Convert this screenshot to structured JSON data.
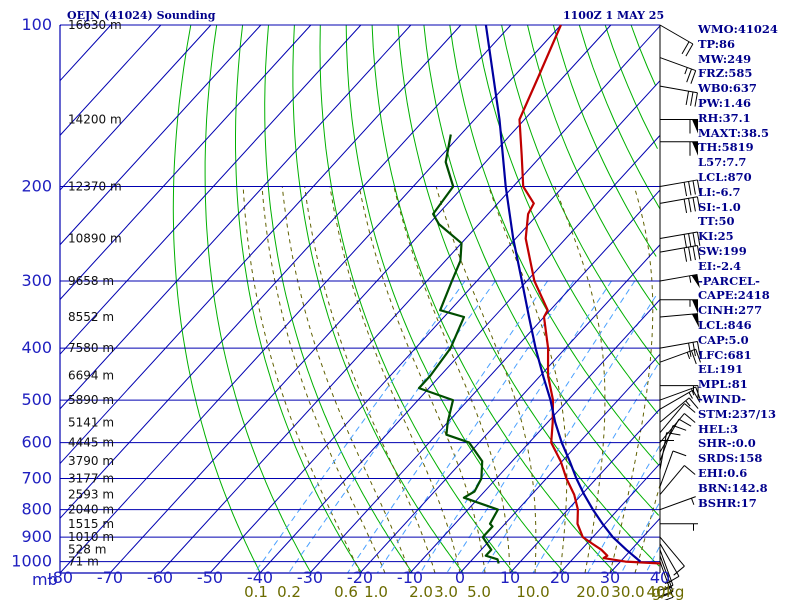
{
  "header": {
    "station": "OEJN (41024) Sounding",
    "time": "1100Z  1 MAY 25"
  },
  "colors": {
    "temperature": "#c00000",
    "dewpoint": "#004d00",
    "parcel": "#0000a0",
    "isobar_isotherm": "#0000b0",
    "dry_adiabat": "#00b000",
    "moist_adiabat": "#606000",
    "mixing_ratio": "#4aa0ff",
    "wind_barb": "#000000",
    "axis_label": "#2020c0",
    "index_text": "#00008b"
  },
  "chart_data": {
    "type": "skew-t log-p",
    "title": "OEJN (41024) Sounding",
    "valid_time": "1100Z  1 MAY 25",
    "pressure_levels_mb": [
      100,
      200,
      300,
      400,
      500,
      600,
      700,
      800,
      900,
      1000
    ],
    "pressure_tick_labels": [
      "100",
      "200",
      "300",
      "400",
      "500",
      "600",
      "700",
      "800",
      "900",
      "1000"
    ],
    "temperature_ticks_c": [
      -80,
      -70,
      -60,
      -50,
      -40,
      -30,
      -20,
      -10,
      0,
      10,
      20,
      30,
      40
    ],
    "temperature_tick_labels": [
      "-80",
      "-70",
      "-60",
      "-50",
      "-40",
      "-30",
      "-20",
      "-10",
      "0",
      "10",
      "20",
      "30",
      "40"
    ],
    "xlabel": "",
    "ylabel": "mb",
    "ylim_mb": [
      100,
      1050
    ],
    "xlim_c_at_1050mb": [
      -80,
      40
    ],
    "mixing_ratio_labels": [
      "0.1",
      "0.2",
      "0.6",
      "1.0",
      "2.0",
      "3.0",
      "5.0",
      "10.0",
      "20.0",
      "30.0",
      "40",
      "g/kg"
    ],
    "height_labels": [
      {
        "p": 100,
        "label": "16630 m"
      },
      {
        "p": 150,
        "label": "14200 m"
      },
      {
        "p": 200,
        "label": "12370 m"
      },
      {
        "p": 250,
        "label": "10890 m"
      },
      {
        "p": 300,
        "label": "9658 m"
      },
      {
        "p": 350,
        "label": "8552 m"
      },
      {
        "p": 400,
        "label": "7580 m"
      },
      {
        "p": 450,
        "label": "6694 m"
      },
      {
        "p": 500,
        "label": "5890 m"
      },
      {
        "p": 550,
        "label": "5141 m"
      },
      {
        "p": 600,
        "label": "4445 m"
      },
      {
        "p": 650,
        "label": "3790 m"
      },
      {
        "p": 700,
        "label": "3177 m"
      },
      {
        "p": 750,
        "label": "2593 m"
      },
      {
        "p": 800,
        "label": "2040 m"
      },
      {
        "p": 850,
        "label": "1515 m"
      },
      {
        "p": 900,
        "label": "1010 m"
      },
      {
        "p": 950,
        "label": "528 m"
      },
      {
        "p": 1000,
        "label": "71 m"
      }
    ],
    "series": [
      {
        "key": "temperature",
        "points": [
          {
            "p": 1008,
            "t": 38.5
          },
          {
            "p": 1000,
            "t": 31
          },
          {
            "p": 985,
            "t": 26
          },
          {
            "p": 975,
            "t": 26.3
          },
          {
            "p": 950,
            "t": 24
          },
          {
            "p": 925,
            "t": 21
          },
          {
            "p": 900,
            "t": 18
          },
          {
            "p": 850,
            "t": 14.5
          },
          {
            "p": 800,
            "t": 12
          },
          {
            "p": 750,
            "t": 8.5
          },
          {
            "p": 700,
            "t": 4
          },
          {
            "p": 650,
            "t": -0.3
          },
          {
            "p": 600,
            "t": -5.6
          },
          {
            "p": 550,
            "t": -9
          },
          {
            "p": 500,
            "t": -13
          },
          {
            "p": 450,
            "t": -18.5
          },
          {
            "p": 400,
            "t": -23.5
          },
          {
            "p": 350,
            "t": -30
          },
          {
            "p": 340,
            "t": -30.5
          },
          {
            "p": 300,
            "t": -38.5
          },
          {
            "p": 250,
            "t": -48
          },
          {
            "p": 225,
            "t": -52
          },
          {
            "p": 215,
            "t": -52.8
          },
          {
            "p": 200,
            "t": -58
          },
          {
            "p": 175,
            "t": -64
          },
          {
            "p": 150,
            "t": -71
          },
          {
            "p": 125,
            "t": -75
          },
          {
            "p": 100,
            "t": -80
          }
        ]
      },
      {
        "key": "dewpoint",
        "points": [
          {
            "p": 1008,
            "t": 6
          },
          {
            "p": 990,
            "t": 5
          },
          {
            "p": 975,
            "t": 2
          },
          {
            "p": 950,
            "t": 2
          },
          {
            "p": 925,
            "t": 0
          },
          {
            "p": 900,
            "t": -2
          },
          {
            "p": 860,
            "t": -2
          },
          {
            "p": 850,
            "t": -3
          },
          {
            "p": 800,
            "t": -4
          },
          {
            "p": 760,
            "t": -13
          },
          {
            "p": 740,
            "t": -12
          },
          {
            "p": 700,
            "t": -13
          },
          {
            "p": 650,
            "t": -16
          },
          {
            "p": 600,
            "t": -22
          },
          {
            "p": 580,
            "t": -28
          },
          {
            "p": 550,
            "t": -30
          },
          {
            "p": 500,
            "t": -33
          },
          {
            "p": 475,
            "t": -42
          },
          {
            "p": 450,
            "t": -42
          },
          {
            "p": 400,
            "t": -43
          },
          {
            "p": 350,
            "t": -46
          },
          {
            "p": 340,
            "t": -52
          },
          {
            "p": 300,
            "t": -55
          },
          {
            "p": 275,
            "t": -57
          },
          {
            "p": 255,
            "t": -60
          },
          {
            "p": 235,
            "t": -68
          },
          {
            "p": 225,
            "t": -71
          },
          {
            "p": 200,
            "t": -72
          },
          {
            "p": 180,
            "t": -78
          },
          {
            "p": 160,
            "t": -82
          }
        ]
      },
      {
        "key": "parcel",
        "points": [
          {
            "p": 1000,
            "t": 34
          },
          {
            "p": 950,
            "t": 29
          },
          {
            "p": 900,
            "t": 24
          },
          {
            "p": 850,
            "t": 19.5
          },
          {
            "p": 800,
            "t": 15
          },
          {
            "p": 750,
            "t": 10.5
          },
          {
            "p": 700,
            "t": 6
          },
          {
            "p": 650,
            "t": 1.5
          },
          {
            "p": 600,
            "t": -3.5
          },
          {
            "p": 550,
            "t": -8.5
          },
          {
            "p": 500,
            "t": -13.5
          },
          {
            "p": 450,
            "t": -19.5
          },
          {
            "p": 400,
            "t": -26
          },
          {
            "p": 350,
            "t": -33
          },
          {
            "p": 300,
            "t": -41
          },
          {
            "p": 250,
            "t": -50.5
          },
          {
            "p": 200,
            "t": -61.5
          },
          {
            "p": 150,
            "t": -75
          },
          {
            "p": 100,
            "t": -95
          }
        ]
      }
    ],
    "wind_barbs": [
      {
        "p": 100,
        "dir": 300,
        "kt": 20
      },
      {
        "p": 115,
        "dir": 290,
        "kt": 25
      },
      {
        "p": 130,
        "dir": 280,
        "kt": 30
      },
      {
        "p": 150,
        "dir": 270,
        "kt": 60
      },
      {
        "p": 165,
        "dir": 270,
        "kt": 60
      },
      {
        "p": 200,
        "dir": 260,
        "kt": 40
      },
      {
        "p": 215,
        "dir": 260,
        "kt": 40
      },
      {
        "p": 250,
        "dir": 260,
        "kt": 40
      },
      {
        "p": 265,
        "dir": 260,
        "kt": 40
      },
      {
        "p": 300,
        "dir": 260,
        "kt": 55
      },
      {
        "p": 325,
        "dir": 270,
        "kt": 55
      },
      {
        "p": 350,
        "dir": 265,
        "kt": 50
      },
      {
        "p": 400,
        "dir": 260,
        "kt": 30
      },
      {
        "p": 425,
        "dir": 250,
        "kt": 25
      },
      {
        "p": 470,
        "dir": 270,
        "kt": 15
      },
      {
        "p": 500,
        "dir": 250,
        "kt": 15
      },
      {
        "p": 520,
        "dir": 240,
        "kt": 15
      },
      {
        "p": 550,
        "dir": 230,
        "kt": 15
      },
      {
        "p": 575,
        "dir": 220,
        "kt": 10
      },
      {
        "p": 600,
        "dir": 220,
        "kt": 10
      },
      {
        "p": 625,
        "dir": 210,
        "kt": 10
      },
      {
        "p": 650,
        "dir": 200,
        "kt": 10
      },
      {
        "p": 675,
        "dir": 190,
        "kt": 10
      },
      {
        "p": 700,
        "dir": 180,
        "kt": 10
      },
      {
        "p": 725,
        "dir": 200,
        "kt": 10
      },
      {
        "p": 750,
        "dir": 220,
        "kt": 10
      },
      {
        "p": 800,
        "dir": 250,
        "kt": 5
      },
      {
        "p": 850,
        "dir": 270,
        "kt": 5
      },
      {
        "p": 900,
        "dir": 320,
        "kt": 10
      },
      {
        "p": 925,
        "dir": 330,
        "kt": 10
      },
      {
        "p": 950,
        "dir": 340,
        "kt": 15
      },
      {
        "p": 975,
        "dir": 340,
        "kt": 15
      },
      {
        "p": 1000,
        "dir": 340,
        "kt": 20
      }
    ]
  },
  "indices": [
    "WMO:41024",
    "TP:86",
    "MW:249",
    "FRZ:585",
    "WB0:637",
    "PW:1.46",
    "RH:37.1",
    "MAXT:38.5",
    "TH:5819",
    "L57:7.7",
    "LCL:870",
    "LI:-6.7",
    "SI:-1.0",
    "TT:50",
    "KI:25",
    "SW:199",
    "EI:-2.4",
    "-PARCEL-",
    "CAPE:2418",
    "CINH:277",
    "LCL:846",
    "CAP:5.0",
    "LFC:681",
    "EL:191",
    "MPL:81",
    "-WIND-",
    "STM:237/13",
    "HEL:3",
    "SHR-:0.0",
    "SRDS:158",
    "EHI:0.6",
    "BRN:142.8",
    "BSHR:17"
  ]
}
